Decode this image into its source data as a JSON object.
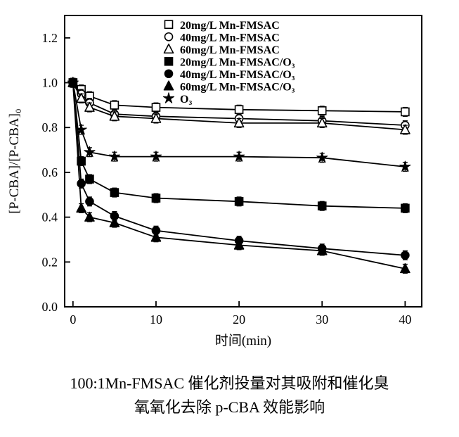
{
  "caption": {
    "line1": "100:1Mn-FMSAC 催化剂投量对其吸附和催化臭",
    "line2": "氧氧化去除 p-CBA 效能影响"
  },
  "chart_data": {
    "type": "line",
    "title": "",
    "xlabel": "时间(min)",
    "ylabel": "[P-CBA]/[P-CBA]₀",
    "xlim": [
      -1,
      42
    ],
    "ylim": [
      0,
      1.3
    ],
    "xticks": [
      0,
      10,
      20,
      30,
      40
    ],
    "yticks": [
      0,
      0.2,
      0.4,
      0.6,
      0.8,
      1.0,
      1.2
    ],
    "grid": false,
    "legend_position": "top-center-inside",
    "line_color": "#000000",
    "error": 0.02,
    "x": [
      0,
      1,
      2,
      5,
      10,
      20,
      30,
      40
    ],
    "series": [
      {
        "name": "20mg/L Mn-FMSAC",
        "marker": "square-open",
        "values": [
          1.0,
          0.97,
          0.94,
          0.9,
          0.89,
          0.88,
          0.875,
          0.87
        ]
      },
      {
        "name": "40mg/L Mn-FMSAC",
        "marker": "circle-open",
        "values": [
          1.0,
          0.95,
          0.91,
          0.86,
          0.85,
          0.84,
          0.83,
          0.81
        ]
      },
      {
        "name": "60mg/L Mn-FMSAC",
        "marker": "triangle-open",
        "values": [
          1.0,
          0.93,
          0.89,
          0.85,
          0.84,
          0.82,
          0.82,
          0.79
        ]
      },
      {
        "name": "20mg/L Mn-FMSAC/O₃",
        "marker": "square-filled",
        "values": [
          1.0,
          0.65,
          0.57,
          0.51,
          0.485,
          0.47,
          0.45,
          0.44
        ]
      },
      {
        "name": "40mg/L Mn-FMSAC/O₃",
        "marker": "circle-filled",
        "values": [
          1.0,
          0.55,
          0.47,
          0.405,
          0.34,
          0.295,
          0.26,
          0.23
        ]
      },
      {
        "name": "60mg/L Mn-FMSAC/O₃",
        "marker": "triangle-filled",
        "values": [
          1.0,
          0.44,
          0.4,
          0.375,
          0.31,
          0.275,
          0.25,
          0.17
        ]
      },
      {
        "name": "O₃",
        "marker": "star",
        "values": [
          1.0,
          0.79,
          0.69,
          0.67,
          0.67,
          0.67,
          0.665,
          0.625
        ]
      }
    ]
  }
}
